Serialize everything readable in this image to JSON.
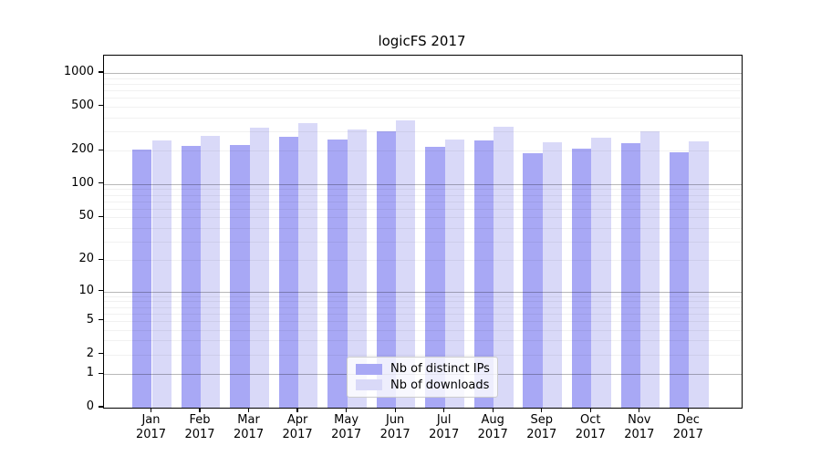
{
  "chart_data": {
    "type": "bar",
    "title": "logicFS 2017",
    "categories": [
      "Jan",
      "Feb",
      "Mar",
      "Apr",
      "May",
      "Jun",
      "Jul",
      "Aug",
      "Sep",
      "Oct",
      "Nov",
      "Dec"
    ],
    "year": "2017",
    "series": [
      {
        "name": "Nb of distinct IPs",
        "color": "#a8a8f5",
        "values": [
          206,
          220,
          225,
          265,
          254,
          297,
          216,
          246,
          191,
          210,
          235,
          194
        ]
      },
      {
        "name": "Nb of downloads",
        "color": "#d9d9f8",
        "values": [
          246,
          272,
          322,
          352,
          310,
          377,
          254,
          327,
          240,
          262,
          300,
          241
        ]
      }
    ],
    "xlabel": "",
    "ylabel": "",
    "yscale": "log1p",
    "ylim": [
      0,
      1430
    ],
    "yticks": [
      0,
      1,
      2,
      5,
      10,
      20,
      50,
      100,
      200,
      500,
      1000
    ],
    "grid": {
      "major_lines": [
        1,
        10,
        100,
        1000
      ],
      "minor_lines": [
        2,
        3,
        4,
        5,
        6,
        7,
        8,
        9,
        20,
        30,
        40,
        50,
        60,
        70,
        80,
        90,
        200,
        300,
        400,
        500,
        600,
        700,
        800,
        900
      ]
    },
    "legend_position": "lower center"
  }
}
